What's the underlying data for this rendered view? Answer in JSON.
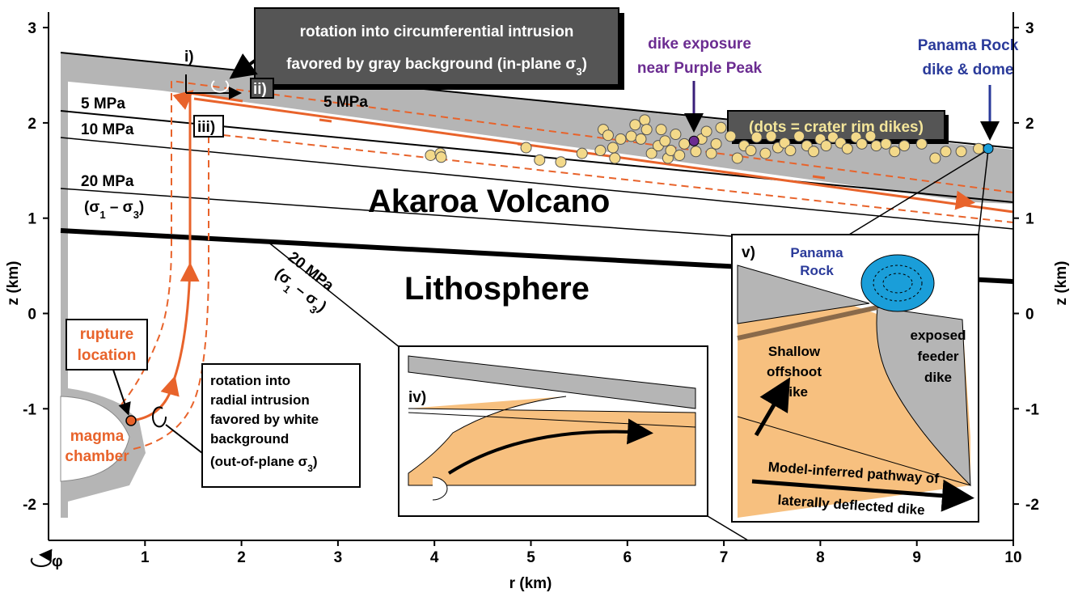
{
  "axes": {
    "x_label": "r (km)",
    "y_label": "z (km)",
    "xticks": [
      1,
      2,
      3,
      4,
      5,
      6,
      7,
      8,
      9,
      10
    ],
    "yticks": [
      -2,
      -1,
      0,
      1,
      2,
      3
    ],
    "phi": "φ"
  },
  "labels": {
    "callout_top": {
      "line1": "rotation into circumferential intrusion",
      "line2": "favored by gray background (in-plane σ",
      "sub": "3",
      "close": ")"
    },
    "steps": [
      "i)",
      "ii)",
      "iii)",
      "iv)",
      "v)"
    ],
    "stress": {
      "left5": "5 MPa",
      "mid5": "5 MPa",
      "ten": "10 MPa",
      "twenty": "20 MPa",
      "diff_a": "(σ",
      "diff_sub1": "1",
      "diff_b": " – σ",
      "diff_sub3": "3",
      "diff_c": ")",
      "twenty_lower": "20 MPa"
    },
    "akaroa": "Akaroa Volcano",
    "lithosphere": "Lithosphere",
    "purple_peak": [
      "dike exposure",
      "near Purple Peak"
    ],
    "panama": [
      "Panama Rock",
      "dike & dome"
    ],
    "dots_note": "(dots = crater rim dikes)",
    "rupture": [
      "rupture",
      "location"
    ],
    "magma": [
      "magma",
      "chamber"
    ],
    "callout_radial": {
      "lines": [
        "rotation into",
        "radial intrusion",
        "favored by white",
        "background"
      ],
      "last": "(out-of-plane σ",
      "sub": "3",
      "close": ")"
    },
    "inset_v": {
      "panama": [
        "Panama",
        "Rock"
      ],
      "feeder": [
        "exposed",
        "feeder",
        "dike"
      ],
      "offshoot": [
        "Shallow",
        "offshoot",
        "dike"
      ],
      "pathway": [
        "Model-inferred pathway of",
        "laterally deflected dike"
      ]
    }
  },
  "dikes": [
    [
      3.96,
      1.66
    ],
    [
      4.06,
      1.68
    ],
    [
      4.07,
      1.64
    ],
    [
      4.95,
      1.74
    ],
    [
      5.09,
      1.61
    ],
    [
      5.31,
      1.59
    ],
    [
      5.53,
      1.68
    ],
    [
      5.72,
      1.71
    ],
    [
      5.75,
      1.93
    ],
    [
      5.8,
      1.87
    ],
    [
      5.85,
      1.74
    ],
    [
      5.87,
      1.63
    ],
    [
      5.93,
      1.83
    ],
    [
      6.04,
      1.86
    ],
    [
      6.08,
      1.98
    ],
    [
      6.14,
      1.83
    ],
    [
      6.18,
      2.03
    ],
    [
      6.2,
      1.93
    ],
    [
      6.25,
      1.68
    ],
    [
      6.32,
      1.76
    ],
    [
      6.35,
      1.93
    ],
    [
      6.39,
      1.81
    ],
    [
      6.42,
      1.63
    ],
    [
      6.45,
      1.71
    ],
    [
      6.5,
      1.88
    ],
    [
      6.54,
      1.66
    ],
    [
      6.59,
      1.78
    ],
    [
      6.71,
      1.7
    ],
    [
      6.77,
      1.83
    ],
    [
      6.82,
      1.91
    ],
    [
      6.87,
      1.68
    ],
    [
      6.92,
      1.78
    ],
    [
      6.97,
      1.95
    ],
    [
      7.07,
      1.86
    ],
    [
      7.14,
      1.63
    ],
    [
      7.21,
      1.76
    ],
    [
      7.28,
      1.71
    ],
    [
      7.34,
      1.85
    ],
    [
      7.43,
      1.68
    ],
    [
      7.49,
      1.86
    ],
    [
      7.56,
      1.74
    ],
    [
      7.63,
      1.79
    ],
    [
      7.69,
      1.71
    ],
    [
      7.78,
      1.86
    ],
    [
      7.86,
      1.76
    ],
    [
      7.93,
      1.7
    ],
    [
      8.0,
      1.83
    ],
    [
      8.06,
      1.76
    ],
    [
      8.13,
      1.85
    ],
    [
      8.21,
      1.79
    ],
    [
      8.28,
      1.73
    ],
    [
      8.37,
      1.85
    ],
    [
      8.43,
      1.78
    ],
    [
      8.52,
      1.86
    ],
    [
      8.58,
      1.76
    ],
    [
      8.68,
      1.78
    ],
    [
      8.77,
      1.7
    ],
    [
      8.87,
      1.76
    ],
    [
      9.05,
      1.78
    ],
    [
      9.19,
      1.63
    ],
    [
      9.3,
      1.7
    ],
    [
      9.46,
      1.7
    ],
    [
      9.64,
      1.73
    ]
  ],
  "purple_peak_point": [
    6.69,
    1.81
  ],
  "panama_point": [
    9.74,
    1.73
  ]
}
